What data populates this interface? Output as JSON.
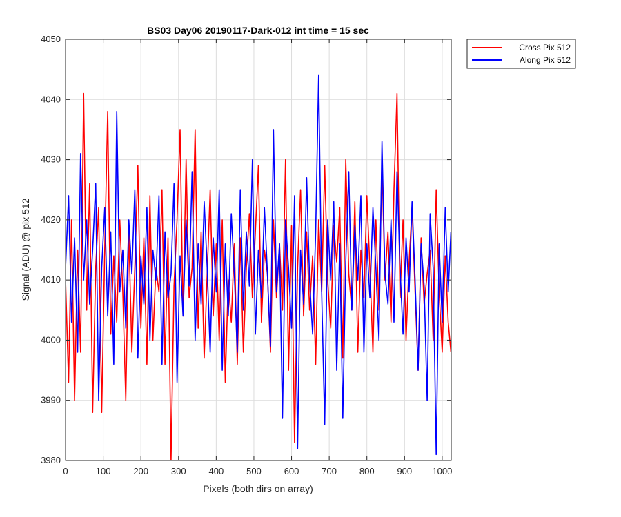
{
  "chart_data": {
    "type": "line",
    "title": "BS03 Day06 20190117-Dark-012 int time = 15 sec",
    "xlabel": "Pixels (both dirs on array)",
    "ylabel": "Signal (ADU) @ pix 512",
    "xlim": [
      0,
      1024
    ],
    "ylim": [
      3980,
      4050
    ],
    "xticks": [
      0,
      100,
      200,
      300,
      400,
      500,
      600,
      700,
      800,
      900,
      1000
    ],
    "yticks": [
      3980,
      3990,
      4000,
      4010,
      4020,
      4030,
      4040,
      4050
    ],
    "grid": true,
    "legend_position": "outside-top-right",
    "series_summary": "1024 noisy samples per series centered ~4012 ADU, range ~3981–4044",
    "series": [
      {
        "name": "Cross Pix 512",
        "color": "#ff0000",
        "sampled": true,
        "x": [
          0,
          8,
          16,
          24,
          32,
          40,
          48,
          56,
          64,
          72,
          80,
          88,
          96,
          104,
          112,
          120,
          128,
          136,
          144,
          152,
          160,
          168,
          176,
          184,
          192,
          200,
          208,
          216,
          224,
          232,
          240,
          248,
          256,
          264,
          272,
          280,
          288,
          296,
          304,
          312,
          320,
          328,
          336,
          344,
          352,
          360,
          368,
          376,
          384,
          392,
          400,
          408,
          416,
          424,
          432,
          440,
          448,
          456,
          464,
          472,
          480,
          488,
          496,
          504,
          512,
          520,
          528,
          536,
          544,
          552,
          560,
          568,
          576,
          584,
          592,
          600,
          608,
          616,
          624,
          632,
          640,
          648,
          656,
          664,
          672,
          680,
          688,
          696,
          704,
          712,
          720,
          728,
          736,
          744,
          752,
          760,
          768,
          776,
          784,
          792,
          800,
          808,
          816,
          824,
          832,
          840,
          848,
          856,
          864,
          872,
          880,
          888,
          896,
          904,
          912,
          920,
          928,
          936,
          944,
          952,
          960,
          968,
          976,
          984,
          992,
          1000,
          1008,
          1016,
          1023
        ],
        "y": [
          4010,
          3993,
          4020,
          3990,
          4015,
          3998,
          4041,
          4005,
          4026,
          3988,
          4012,
          4022,
          3988,
          4015,
          4038,
          4001,
          4014,
          4003,
          4020,
          4008,
          3990,
          4018,
          3998,
          4012,
          4029,
          4002,
          4017,
          3996,
          4024,
          4000,
          4012,
          4008,
          4025,
          3996,
          4017,
          3980,
          4009,
          4020,
          4035,
          4004,
          4030,
          4007,
          4012,
          4035,
          4002,
          4018,
          3997,
          4011,
          4025,
          4004,
          4016,
          4000,
          4020,
          3993,
          4010,
          4003,
          4016,
          3996,
          4017,
          3998,
          4012,
          4021,
          4007,
          4018,
          4029,
          4003,
          4015,
          4011,
          3998,
          4020,
          4007,
          4016,
          4005,
          4030,
          3995,
          4019,
          3983,
          4012,
          4025,
          4004,
          4018,
          4005,
          4014,
          3996,
          4020,
          4008,
          4029,
          4010,
          4002,
          4019,
          4013,
          4022,
          3997,
          4030,
          4011,
          4005,
          4023,
          3998,
          4015,
          4007,
          4024,
          4012,
          3998,
          4020,
          4005,
          4030,
          4010,
          4018,
          4003,
          4025,
          4041,
          4007,
          4020,
          4000,
          4013,
          4022,
          4008,
          3995,
          4017,
          4006,
          4011,
          4015,
          4000,
          4025,
          4008,
          3998,
          4014,
          4003,
          3998
        ]
      },
      {
        "name": "Along Pix 512",
        "color": "#0000ff",
        "sampled": true,
        "x": [
          0,
          8,
          16,
          24,
          32,
          40,
          48,
          56,
          64,
          72,
          80,
          88,
          96,
          104,
          112,
          120,
          128,
          136,
          144,
          152,
          160,
          168,
          176,
          184,
          192,
          200,
          208,
          216,
          224,
          232,
          240,
          248,
          256,
          264,
          272,
          280,
          288,
          296,
          304,
          312,
          320,
          328,
          336,
          344,
          352,
          360,
          368,
          376,
          384,
          392,
          400,
          408,
          416,
          424,
          432,
          440,
          448,
          456,
          464,
          472,
          480,
          488,
          496,
          504,
          512,
          520,
          528,
          536,
          544,
          552,
          560,
          568,
          576,
          584,
          592,
          600,
          608,
          616,
          624,
          632,
          640,
          648,
          656,
          664,
          672,
          680,
          688,
          696,
          704,
          712,
          720,
          728,
          736,
          744,
          752,
          760,
          768,
          776,
          784,
          792,
          800,
          808,
          816,
          824,
          832,
          840,
          848,
          856,
          864,
          872,
          880,
          888,
          896,
          904,
          912,
          920,
          928,
          936,
          944,
          952,
          960,
          968,
          976,
          984,
          992,
          1000,
          1008,
          1016,
          1023
        ],
        "y": [
          4012,
          4024,
          4003,
          4017,
          3998,
          4031,
          4010,
          4020,
          4006,
          4015,
          4026,
          3990,
          4012,
          4022,
          4004,
          4018,
          3996,
          4038,
          4008,
          4015,
          4002,
          4020,
          4011,
          4025,
          3997,
          4014,
          4006,
          4022,
          4000,
          4015,
          4010,
          4024,
          3996,
          4018,
          4007,
          4011,
          4026,
          3993,
          4014,
          4004,
          4020,
          4009,
          4028,
          4000,
          4016,
          4006,
          4023,
          4012,
          3998,
          4017,
          4008,
          4025,
          3995,
          4016,
          4004,
          4021,
          4011,
          3998,
          4025,
          4005,
          4018,
          4009,
          4030,
          4001,
          4015,
          4007,
          4022,
          4011,
          3999,
          4035,
          4008,
          4016,
          3987,
          4020,
          4012,
          4002,
          4024,
          3982,
          4015,
          4006,
          4027,
          4010,
          4001,
          4018,
          4044,
          4008,
          3986,
          4020,
          4010,
          4023,
          3995,
          4016,
          3987,
          4013,
          4028,
          4005,
          4019,
          4010,
          4024,
          3998,
          4016,
          4007,
          4022,
          4012,
          4000,
          4033,
          4011,
          4006,
          4020,
          4003,
          4028,
          4012,
          4001,
          4017,
          4008,
          4023,
          4010,
          3995,
          4016,
          4009,
          3990,
          4021,
          4012,
          3981,
          4016,
          4003,
          4022,
          4008,
          4018
        ]
      }
    ]
  }
}
